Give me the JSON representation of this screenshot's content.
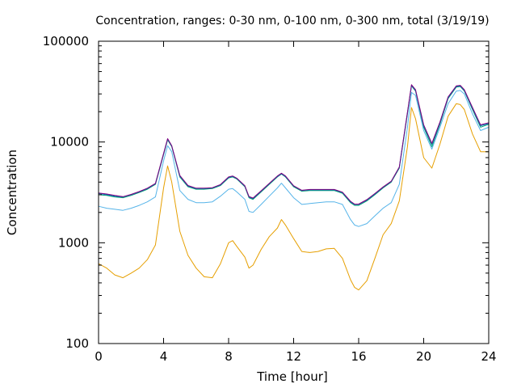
{
  "chart_data": {
    "type": "line",
    "title": "Concentration, ranges: 0-30 nm, 0-100 nm, 0-300 nm, total (3/19/19)",
    "xlabel": "Time [hour]",
    "ylabel": "Concentration",
    "xlim": [
      0,
      24
    ],
    "ylim": [
      100,
      100000
    ],
    "yscale": "log",
    "grid": false,
    "legend": "none",
    "x_ticks": [
      "0",
      "4",
      "8",
      "12",
      "16",
      "20",
      "24"
    ],
    "y_ticks": [
      "100",
      "1000",
      "10000",
      "100000"
    ],
    "x": [
      0,
      0.5,
      1,
      1.5,
      2,
      2.5,
      3,
      3.5,
      4,
      4.25,
      4.5,
      5,
      5.5,
      6,
      6.5,
      7,
      7.5,
      8,
      8.25,
      8.5,
      9,
      9.25,
      9.5,
      10,
      10.5,
      11,
      11.25,
      11.5,
      12,
      12.5,
      13,
      13.5,
      14,
      14.5,
      15,
      15.5,
      15.75,
      16,
      16.5,
      17,
      17.5,
      18,
      18.5,
      19,
      19.25,
      19.5,
      20,
      20.5,
      21,
      21.5,
      22,
      22.25,
      22.5,
      23,
      23.5,
      24
    ],
    "series": [
      {
        "color": "#e69f00",
        "values": [
          620,
          560,
          480,
          450,
          500,
          560,
          680,
          950,
          3500,
          5800,
          4000,
          1300,
          750,
          560,
          460,
          450,
          620,
          1000,
          1050,
          920,
          720,
          560,
          600,
          860,
          1150,
          1400,
          1700,
          1500,
          1100,
          820,
          800,
          820,
          870,
          880,
          700,
          430,
          360,
          340,
          420,
          700,
          1200,
          1550,
          2600,
          9000,
          22000,
          17000,
          7000,
          5500,
          9500,
          18000,
          24000,
          23500,
          21000,
          12000,
          8000,
          8000
        ]
      },
      {
        "color": "#56b4e9",
        "values": [
          2300,
          2200,
          2150,
          2100,
          2200,
          2350,
          2550,
          2850,
          6500,
          9200,
          8000,
          3300,
          2700,
          2500,
          2500,
          2550,
          2900,
          3400,
          3450,
          3200,
          2700,
          2050,
          2000,
          2400,
          2900,
          3500,
          3900,
          3500,
          2800,
          2400,
          2450,
          2500,
          2550,
          2550,
          2400,
          1700,
          1500,
          1450,
          1550,
          1850,
          2200,
          2500,
          3800,
          14000,
          31000,
          29000,
          13000,
          8500,
          14000,
          24000,
          32000,
          32500,
          30000,
          19000,
          13000,
          14000
        ]
      },
      {
        "color": "#009e73",
        "values": [
          3000,
          2950,
          2850,
          2800,
          2950,
          3150,
          3400,
          3800,
          7500,
          10500,
          9000,
          4500,
          3600,
          3400,
          3400,
          3450,
          3700,
          4400,
          4500,
          4300,
          3600,
          2800,
          2700,
          3200,
          3800,
          4500,
          4800,
          4500,
          3600,
          3250,
          3300,
          3300,
          3300,
          3300,
          3100,
          2500,
          2350,
          2350,
          2600,
          3000,
          3500,
          4000,
          5500,
          19000,
          36000,
          32000,
          14000,
          9000,
          15000,
          27000,
          35000,
          35500,
          32000,
          21000,
          14000,
          15000
        ]
      },
      {
        "color": "#0072b2",
        "values": [
          3080,
          3000,
          2900,
          2850,
          3000,
          3200,
          3450,
          3850,
          7600,
          10700,
          9100,
          4600,
          3650,
          3450,
          3450,
          3500,
          3750,
          4450,
          4550,
          4350,
          3650,
          2850,
          2750,
          3250,
          3850,
          4550,
          4850,
          4550,
          3650,
          3300,
          3350,
          3350,
          3350,
          3350,
          3150,
          2550,
          2400,
          2400,
          2650,
          3050,
          3550,
          4050,
          5600,
          19500,
          36500,
          32500,
          14500,
          9500,
          15500,
          27500,
          35500,
          36000,
          32500,
          21500,
          14500,
          15200
        ]
      },
      {
        "color": "#800080",
        "values": [
          3120,
          3050,
          2950,
          2870,
          3020,
          3220,
          3480,
          3880,
          7700,
          10800,
          9200,
          4650,
          3700,
          3480,
          3480,
          3520,
          3780,
          4500,
          4600,
          4380,
          3680,
          2880,
          2780,
          3280,
          3880,
          4600,
          4900,
          4600,
          3680,
          3320,
          3380,
          3380,
          3380,
          3380,
          3180,
          2580,
          2420,
          2420,
          2680,
          3080,
          3580,
          4080,
          5650,
          19800,
          37000,
          33000,
          14800,
          9700,
          15800,
          28000,
          36000,
          36500,
          33000,
          22000,
          14800,
          15500
        ]
      }
    ]
  }
}
